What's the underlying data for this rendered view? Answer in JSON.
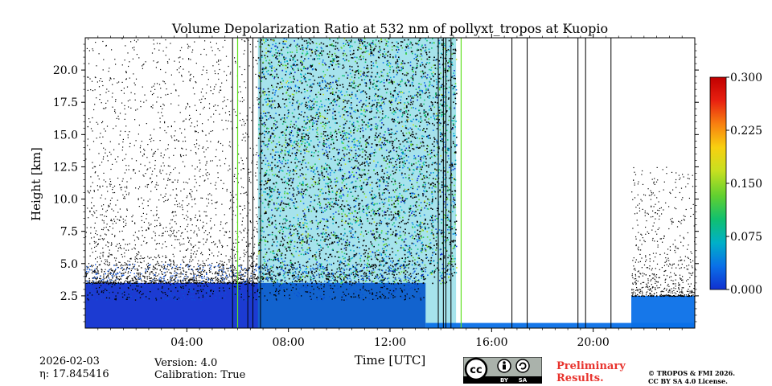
{
  "chart_data": {
    "type": "heatmap",
    "title": "Volume Depolarization Ratio at 532 nm of pollyxt_tropos at Kuopio",
    "xlabel": "Time [UTC]",
    "ylabel": "Height [km]",
    "xlim": [
      0,
      24
    ],
    "ylim": [
      0,
      22.5
    ],
    "x_ticks": [
      {
        "value": 4,
        "label": "04:00"
      },
      {
        "value": 8,
        "label": "08:00"
      },
      {
        "value": 12,
        "label": "12:00"
      },
      {
        "value": 16,
        "label": "16:00"
      },
      {
        "value": 20,
        "label": "20:00"
      }
    ],
    "y_ticks": [
      {
        "value": 2.5,
        "label": "2.5"
      },
      {
        "value": 5.0,
        "label": "5.0"
      },
      {
        "value": 7.5,
        "label": "7.5"
      },
      {
        "value": 10.0,
        "label": "10.0"
      },
      {
        "value": 12.5,
        "label": "12.5"
      },
      {
        "value": 15.0,
        "label": "15.0"
      },
      {
        "value": 17.5,
        "label": "17.5"
      },
      {
        "value": 20.0,
        "label": "20.0"
      }
    ],
    "colorbar": {
      "range": [
        0.0,
        0.3
      ],
      "ticks": [
        {
          "value": 0.0,
          "label": "0.000"
        },
        {
          "value": 0.075,
          "label": "0.075"
        },
        {
          "value": 0.15,
          "label": "0.150"
        },
        {
          "value": 0.225,
          "label": "0.225"
        },
        {
          "value": 0.3,
          "label": "0.300"
        }
      ],
      "colors": [
        "#1030d0",
        "#0a70e8",
        "#00b0c8",
        "#10c070",
        "#60d030",
        "#c8e020",
        "#f8d010",
        "#f88010",
        "#e82010",
        "#c00000"
      ]
    },
    "regions": [
      {
        "desc": "boundary layer",
        "t_start": 0,
        "t_end": 13.4,
        "h_top": 3.5,
        "value": 0.01
      },
      {
        "desc": "noisy cloud-free",
        "t_start": 6.8,
        "t_end": 14.6,
        "h_top": 22.5,
        "value": 0.08
      },
      {
        "desc": "thin low layer",
        "t_start": 13.4,
        "t_end": 24,
        "h_top": 0.4,
        "value": 0.04
      },
      {
        "desc": "evening aerosol",
        "t_start": 21.5,
        "t_end": 24,
        "h_top": 2.5,
        "value": 0.02
      }
    ],
    "black_lines": [
      5.8,
      6.4,
      6.6,
      6.9,
      13.9,
      14.1,
      14.2,
      14.4,
      16.8,
      17.4,
      19.4,
      19.7,
      20.7
    ],
    "green_lines": [
      6.0,
      14.8
    ]
  },
  "meta": {
    "date": "2026-02-03",
    "eta": "η: 17.845416",
    "version": "Version: 4.0",
    "calibration": "Calibration: True",
    "preliminary": "Preliminary Results.",
    "copyright": "© TROPOS & FMI 2026.",
    "license": "CC BY SA 4.0 License.",
    "cc_label_by": "BY",
    "cc_label_sa": "SA",
    "cc_label_cc": "cc"
  }
}
